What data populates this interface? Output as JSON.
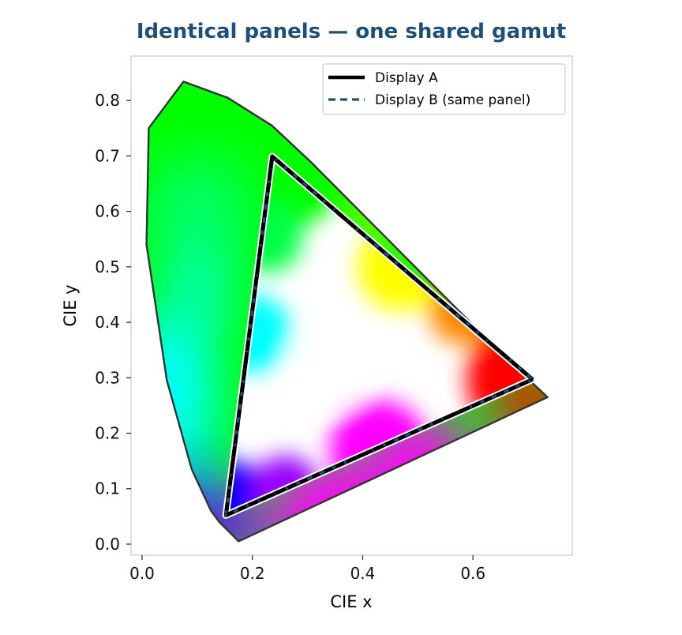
{
  "chart_data": {
    "type": "scatter",
    "title": "Identical panels — one shared gamut",
    "xlabel": "CIE x",
    "ylabel": "CIE y",
    "xlim": [
      -0.02,
      0.78
    ],
    "ylim": [
      -0.02,
      0.88
    ],
    "x_ticks": [
      0.0,
      0.2,
      0.4,
      0.6
    ],
    "y_ticks": [
      0.0,
      0.1,
      0.2,
      0.3,
      0.4,
      0.5,
      0.6,
      0.7,
      0.8
    ],
    "x_tick_labels": [
      "0.0",
      "0.2",
      "0.4",
      "0.6"
    ],
    "y_tick_labels": [
      "0.0",
      "0.1",
      "0.2",
      "0.3",
      "0.4",
      "0.5",
      "0.6",
      "0.7",
      "0.8"
    ],
    "grid": false,
    "legend_position": "top-right",
    "locus": {
      "name": "",
      "x": [
        0.175,
        0.14,
        0.125,
        0.09,
        0.045,
        0.008,
        0.012,
        0.075,
        0.155,
        0.235,
        0.305,
        0.375,
        0.445,
        0.515,
        0.585,
        0.655,
        0.735
      ],
      "y": [
        0.005,
        0.04,
        0.06,
        0.135,
        0.295,
        0.54,
        0.75,
        0.834,
        0.805,
        0.755,
        0.69,
        0.62,
        0.55,
        0.48,
        0.41,
        0.34,
        0.265
      ]
    },
    "series": [
      {
        "name": "Display A",
        "style": "solid",
        "color": "#000000",
        "x": [
          0.708,
          0.236,
          0.152,
          0.708
        ],
        "y": [
          0.297,
          0.699,
          0.052,
          0.297
        ]
      },
      {
        "name": "Display B (same panel)",
        "style": "dashed",
        "color": "#1f4e79",
        "x": [
          0.708,
          0.236,
          0.152,
          0.708
        ],
        "y": [
          0.297,
          0.699,
          0.052,
          0.297
        ]
      }
    ],
    "colors": {
      "title": "#1f4e79",
      "red_primary": "#ff0000",
      "green_primary": "#00ff00",
      "blue_primary": "#0000ff",
      "white_point": "#ffffff",
      "cyan": "#00ffff",
      "magenta": "#ff00ff",
      "yellow": "#ffff00",
      "violet": "#7a00ff",
      "locus_outline": "#333333"
    }
  }
}
